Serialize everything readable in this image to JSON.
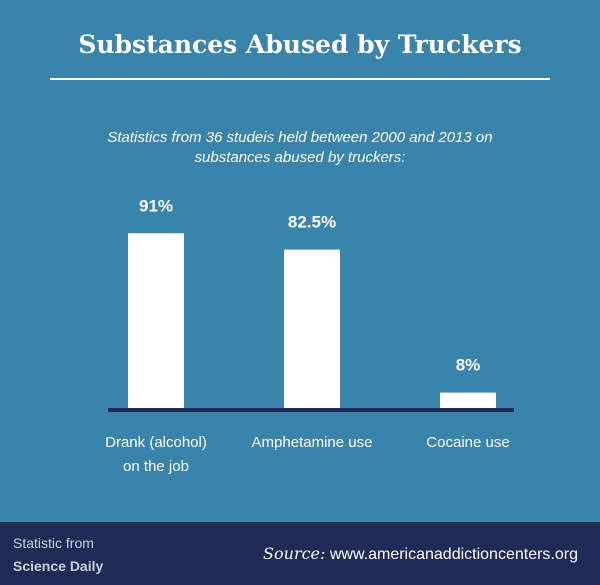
{
  "header": {
    "title": "Substances Abused by Truckers",
    "subtitle": "Statistics from 36 studeis held between 2000 and 2013 on substances abused by truckers:"
  },
  "chart_data": {
    "type": "bar",
    "categories": [
      "Drank (alcohol)\non the job",
      "Amphetamine use",
      "Cocaine use"
    ],
    "values": [
      91,
      82.5,
      8
    ],
    "value_labels": [
      "91%",
      "82.5%",
      "8%"
    ],
    "ylim": [
      0,
      100
    ],
    "grid": false,
    "legend": "none",
    "colors": {
      "bar": "#ffffff",
      "baseline": "#1f2a56",
      "text": "#ffffff"
    }
  },
  "footer": {
    "left_line1": "Statistic from",
    "left_line2": "Science Daily",
    "source_label": "Source:",
    "source_url": "www.americanaddictioncenters.org"
  },
  "colors": {
    "background": "#3a83ab",
    "footer": "#1f2a56"
  }
}
